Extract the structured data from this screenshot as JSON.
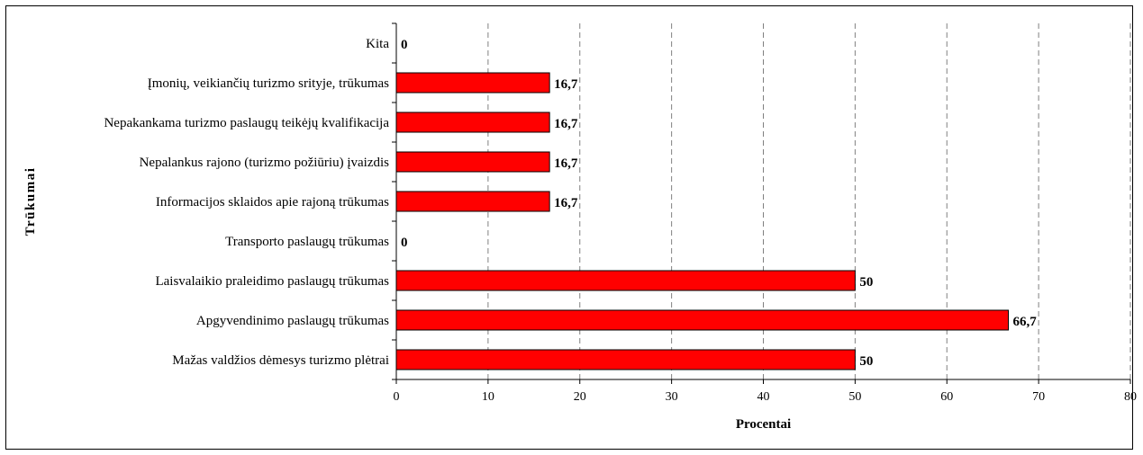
{
  "chart_data": {
    "type": "bar",
    "orientation": "horizontal",
    "title": "",
    "xlabel": "Procentai",
    "ylabel": "Trūkumai",
    "xlim": [
      0,
      80
    ],
    "xticks": [
      0,
      10,
      20,
      30,
      40,
      50,
      60,
      70,
      80
    ],
    "grid": "vertical-dashed",
    "legend": "none",
    "bar_color": "#ff0000",
    "categories": [
      "Kita",
      "Įmonių, veikiančių turizmo srityje, trūkumas",
      "Nepakankama turizmo paslaugų teikėjų kvalifikacija",
      "Nepalankus rajono (turizmo požiūriu) įvaizdis",
      "Informacijos sklaidos apie rajoną trūkumas",
      "Transporto paslaugų trūkumas",
      "Laisvalaikio praleidimo paslaugų trūkumas",
      "Apgyvendinimo paslaugų trūkumas",
      "Mažas valdžios dėmesys turizmo plėtrai"
    ],
    "values": [
      0,
      16.7,
      16.7,
      16.7,
      16.7,
      0,
      50,
      66.7,
      50
    ],
    "data_labels": [
      "0",
      "16,7",
      "16,7",
      "16,7",
      "16,7",
      "0",
      "50",
      "66,7",
      "50"
    ]
  }
}
